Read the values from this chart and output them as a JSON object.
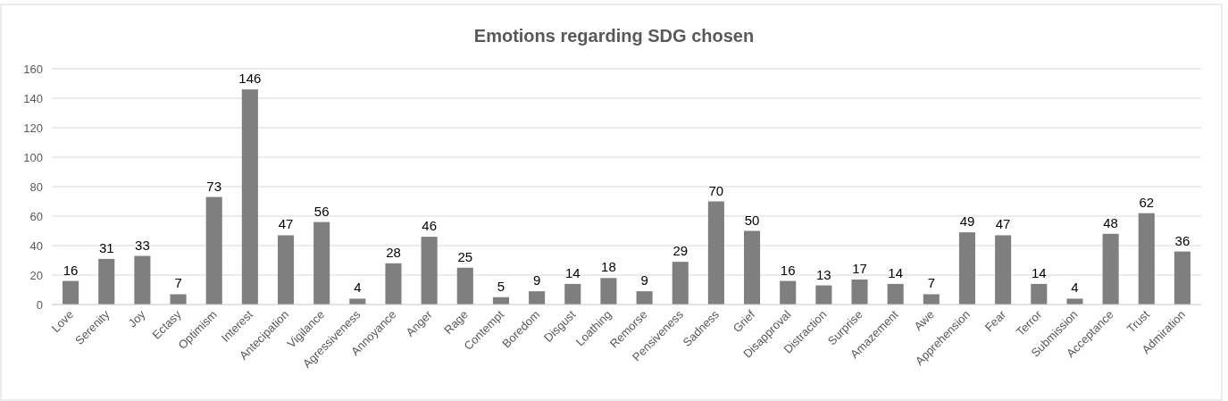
{
  "chart_data": {
    "type": "bar",
    "title": "Emotions regarding SDG chosen",
    "categories": [
      "Love",
      "Serenity",
      "Joy",
      "Ectasy",
      "Optimism",
      "Interest",
      "Antecipation",
      "Vigilance",
      "Agressiveness",
      "Annoyance",
      "Anger",
      "Rage",
      "Contempt",
      "Boredom",
      "Disgust",
      "Loathing",
      "Remorse",
      "Pensiveness",
      "Sadness",
      "Grief",
      "Disapproval",
      "Distraction",
      "Surprise",
      "Amazement",
      "Awe",
      "Apprehension",
      "Fear",
      "Terror",
      "Submission",
      "Acceptance",
      "Trust",
      "Admiration"
    ],
    "values": [
      16,
      31,
      33,
      7,
      73,
      146,
      47,
      56,
      4,
      28,
      46,
      25,
      5,
      9,
      14,
      18,
      9,
      29,
      70,
      50,
      16,
      13,
      17,
      14,
      7,
      49,
      47,
      14,
      4,
      48,
      62,
      36
    ],
    "color": "#7f7f7f",
    "ylim": [
      0,
      160
    ],
    "yticks": [
      0,
      20,
      40,
      60,
      80,
      100,
      120,
      140,
      160
    ],
    "grid": "y",
    "data_labels": true
  }
}
